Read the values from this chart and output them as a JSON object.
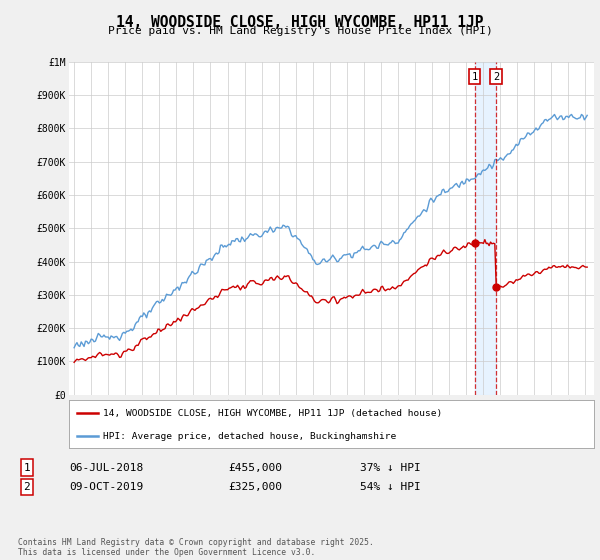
{
  "title": "14, WOODSIDE CLOSE, HIGH WYCOMBE, HP11 1JP",
  "subtitle": "Price paid vs. HM Land Registry's House Price Index (HPI)",
  "legend_label_red": "14, WOODSIDE CLOSE, HIGH WYCOMBE, HP11 1JP (detached house)",
  "legend_label_blue": "HPI: Average price, detached house, Buckinghamshire",
  "annotation1_date": "06-JUL-2018",
  "annotation1_price": "£455,000",
  "annotation1_hpi": "37% ↓ HPI",
  "annotation2_date": "09-OCT-2019",
  "annotation2_price": "£325,000",
  "annotation2_hpi": "54% ↓ HPI",
  "footnote": "Contains HM Land Registry data © Crown copyright and database right 2025.\nThis data is licensed under the Open Government Licence v3.0.",
  "hpi_color": "#5b9bd5",
  "price_color": "#cc0000",
  "vline_color": "#cc0000",
  "shade_color": "#ddeeff",
  "background_color": "#f0f0f0",
  "plot_bg_color": "#ffffff",
  "ylim": [
    0,
    1000000
  ],
  "yticks": [
    0,
    100000,
    200000,
    300000,
    400000,
    500000,
    600000,
    700000,
    800000,
    900000,
    1000000
  ],
  "ytick_labels": [
    "£0",
    "£100K",
    "£200K",
    "£300K",
    "£400K",
    "£500K",
    "£600K",
    "£700K",
    "£800K",
    "£900K",
    "£1M"
  ],
  "sale1_year": 2018.5,
  "sale1_price": 455000,
  "sale2_year": 2019.75,
  "sale2_price": 325000
}
